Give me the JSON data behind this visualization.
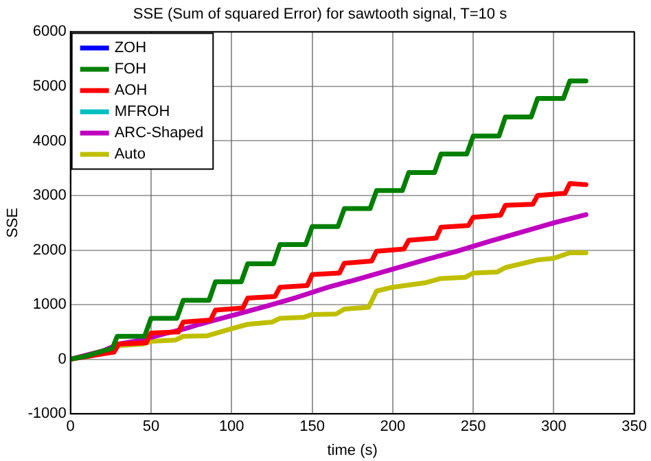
{
  "chart_data": {
    "type": "line",
    "title": "SSE (Sum of squared Error) for sawtooth signal, T=10 s",
    "xlabel": "time (s)",
    "ylabel": "SSE",
    "xlim": [
      0,
      350
    ],
    "xticks": [
      0,
      50,
      100,
      150,
      200,
      250,
      300,
      350
    ],
    "ylim": [
      -1000,
      6000
    ],
    "yticks": [
      -1000,
      0,
      1000,
      2000,
      3000,
      4000,
      5000,
      6000
    ],
    "grid": true,
    "legend": "top left",
    "marker": "none",
    "line_style": "solid",
    "series": [
      {
        "name": "ZOH",
        "color": "#0000ff"
      },
      {
        "name": "FOH",
        "color": "#008000",
        "x": [
          0,
          10,
          20,
          26,
          29,
          46,
          50,
          66,
          70,
          86,
          90,
          106,
          110,
          126,
          130,
          146,
          150,
          166,
          170,
          186,
          190,
          206,
          210,
          226,
          230,
          246,
          250,
          266,
          270,
          286,
          290,
          306,
          310,
          320
        ],
        "values": [
          0,
          60,
          150,
          200,
          420,
          420,
          750,
          750,
          1080,
          1080,
          1420,
          1420,
          1750,
          1750,
          2100,
          2100,
          2430,
          2430,
          2760,
          2760,
          3090,
          3090,
          3420,
          3420,
          3760,
          3760,
          4090,
          4090,
          4440,
          4440,
          4780,
          4780,
          5100,
          5100
        ]
      },
      {
        "name": "AOH",
        "color": "#ff0000",
        "x": [
          0,
          10,
          20,
          27,
          30,
          47,
          50,
          67,
          70,
          87,
          90,
          107,
          110,
          127,
          130,
          147,
          150,
          167,
          170,
          187,
          190,
          207,
          210,
          227,
          230,
          247,
          250,
          267,
          270,
          287,
          290,
          307,
          310,
          320
        ],
        "values": [
          0,
          50,
          100,
          130,
          280,
          300,
          480,
          500,
          680,
          720,
          900,
          940,
          1120,
          1150,
          1320,
          1350,
          1550,
          1580,
          1760,
          1800,
          1980,
          2020,
          2180,
          2220,
          2420,
          2450,
          2600,
          2640,
          2820,
          2840,
          3000,
          3040,
          3220,
          3200
        ]
      },
      {
        "name": "MFROH",
        "color": "#00bfbf"
      },
      {
        "name": "ARC-Shaped",
        "color": "#bf00bf",
        "x": [
          0,
          20,
          30,
          40,
          50,
          60,
          70,
          80,
          90,
          100,
          120,
          140,
          160,
          180,
          200,
          220,
          240,
          260,
          280,
          300,
          320
        ],
        "values": [
          0,
          150,
          280,
          330,
          400,
          480,
          550,
          640,
          720,
          800,
          960,
          1130,
          1320,
          1480,
          1650,
          1820,
          1980,
          2160,
          2330,
          2500,
          2650
        ]
      },
      {
        "name": "Auto",
        "color": "#bfbf00",
        "x": [
          0,
          20,
          30,
          45,
          50,
          65,
          70,
          85,
          100,
          110,
          125,
          130,
          145,
          150,
          165,
          170,
          185,
          190,
          200,
          220,
          230,
          245,
          250,
          265,
          270,
          290,
          300,
          310,
          320
        ],
        "values": [
          0,
          150,
          250,
          280,
          330,
          350,
          420,
          430,
          560,
          640,
          680,
          750,
          770,
          820,
          830,
          920,
          950,
          1250,
          1320,
          1400,
          1480,
          1500,
          1580,
          1600,
          1680,
          1820,
          1850,
          1950,
          1950
        ]
      }
    ]
  }
}
